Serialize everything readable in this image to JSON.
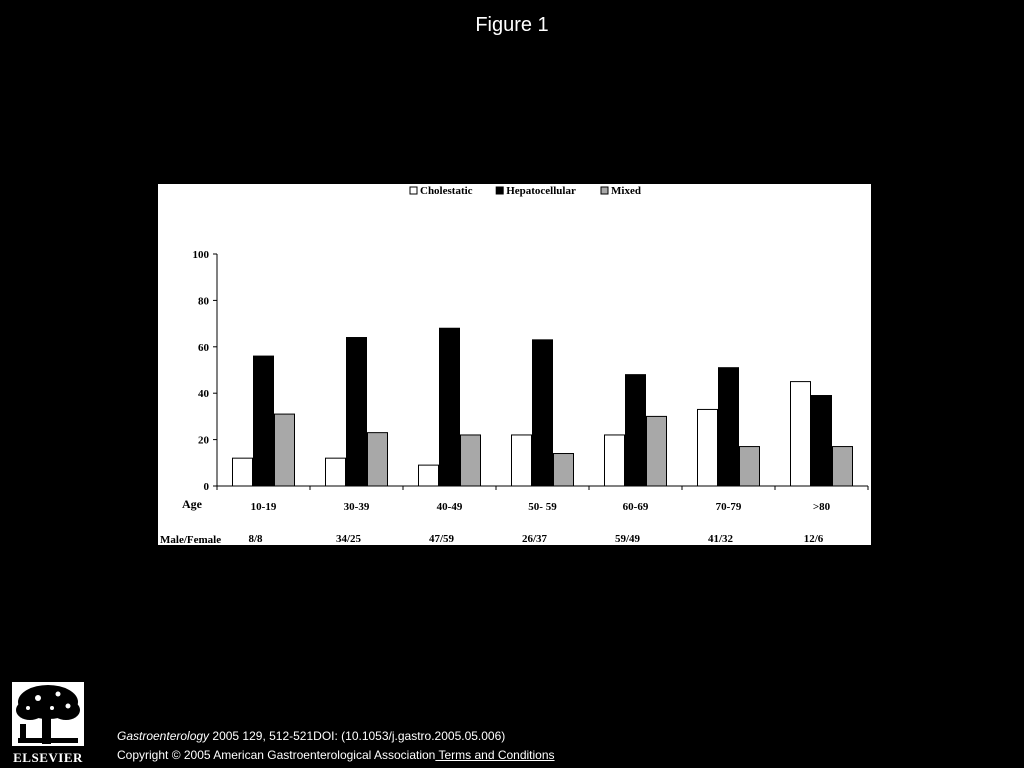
{
  "page": {
    "title": "Figure 1",
    "citation": {
      "journal": "Gastroenterology",
      "rest": " 2005 129, 512-521DOI: (10.1053/j.gastro.2005.05.006)"
    },
    "copyright": "Copyright © 2005 American Gastroenterological Association",
    "terms_link": " Terms and Conditions",
    "publisher_logo": "ELSEVIER"
  },
  "chart_data": {
    "type": "bar",
    "categories": [
      "10-19",
      "30-39",
      "40-49",
      "50- 59",
      "60-69",
      "70-79",
      ">80"
    ],
    "series": [
      {
        "name": "Cholestatic",
        "values": [
          12,
          12,
          9,
          22,
          22,
          33,
          45
        ],
        "color": "#ffffff"
      },
      {
        "name": "Hepatocellular",
        "values": [
          56,
          64,
          68,
          63,
          48,
          51,
          39
        ],
        "color": "#000000"
      },
      {
        "name": "Mixed",
        "values": [
          31,
          23,
          22,
          14,
          30,
          17,
          17
        ],
        "color": "#a8a8a8"
      }
    ],
    "yticks": [
      0,
      20,
      40,
      60,
      80,
      100
    ],
    "ylim": [
      0,
      100
    ],
    "xlabel": "Age",
    "row2_label": "Male/Female",
    "row2_values": [
      "8/8",
      "34/25",
      "47/59",
      "26/37",
      "59/49",
      "41/32",
      "12/6"
    ],
    "legend_position": "top",
    "grid": false
  }
}
